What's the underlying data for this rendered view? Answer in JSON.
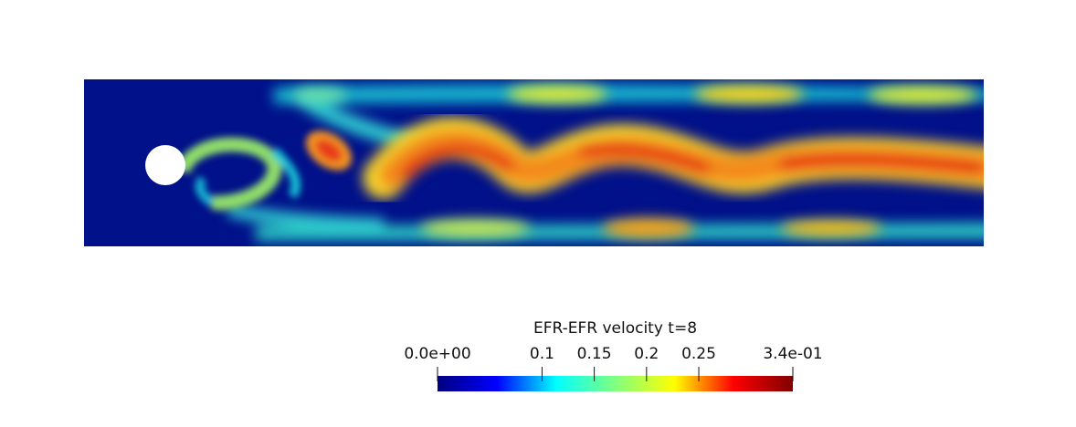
{
  "figure": {
    "field_name": "EFR-EFR velocity t=8",
    "colormap": "jet",
    "obstacle": "cylinder"
  },
  "colorbar": {
    "title": "EFR-EFR velocity t=8",
    "min": 0.0,
    "max": 0.34,
    "ticks": [
      {
        "value": 0.0,
        "label": "0.0e+00"
      },
      {
        "value": 0.1,
        "label": "0.1"
      },
      {
        "value": 0.15,
        "label": "0.15"
      },
      {
        "value": 0.2,
        "label": "0.2"
      },
      {
        "value": 0.25,
        "label": "0.25"
      },
      {
        "value": 0.34,
        "label": "3.4e-01"
      }
    ],
    "colors": [
      "#000080",
      "#0000ff",
      "#00ffff",
      "#80ff80",
      "#ffff00",
      "#ff0000",
      "#800000"
    ]
  }
}
